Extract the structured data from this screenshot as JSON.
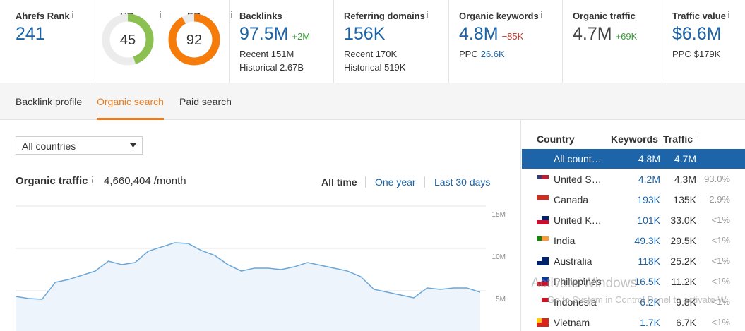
{
  "metrics": [
    {
      "label": "Ahrefs Rank",
      "value": "241"
    },
    {
      "label": "UR",
      "value": 45,
      "color": "#8cc152"
    },
    {
      "label": "DR",
      "value": 92,
      "color": "#f57c0a"
    },
    {
      "label": "Backlinks",
      "value": "97.5M",
      "delta": "+2M",
      "lines": [
        "Recent 151M",
        "Historical 2.67B"
      ]
    },
    {
      "label": "Referring domains",
      "value": "156K",
      "lines": [
        "Recent 170K",
        "Historical 519K"
      ]
    },
    {
      "label": "Organic keywords",
      "value": "4.8M",
      "delta": "−85K",
      "ppc_label": "PPC",
      "ppc": "26.6K"
    },
    {
      "label": "Organic traffic",
      "value": "4.7M",
      "delta": "+69K"
    },
    {
      "label": "Traffic value",
      "value": "$6.6M",
      "ppc_label": "PPC",
      "ppc": "$179K"
    }
  ],
  "tabs": [
    "Backlink profile",
    "Organic search",
    "Paid search"
  ],
  "active_tab": 1,
  "filter": "All countries",
  "traffic_panel": {
    "title": "Organic traffic",
    "total": "4,660,404",
    "unit": "/month",
    "ranges": [
      "All time",
      "One year",
      "Last 30 days"
    ],
    "active_range": 0
  },
  "chart_data": {
    "type": "line",
    "color": "#6aa6d8",
    "values": [
      4330000,
      4080000,
      4000000,
      6000000,
      6330000,
      6830000,
      7330000,
      8500000,
      8080000,
      8330000,
      9670000,
      10170000,
      10670000,
      10580000,
      9750000,
      9170000,
      8080000,
      7330000,
      7670000,
      7670000,
      7500000,
      7830000,
      8330000,
      8000000,
      7670000,
      7330000,
      6670000,
      5170000,
      4830000,
      4500000,
      4170000,
      5330000,
      5170000,
      5330000,
      5330000,
      4830000
    ],
    "ylim": [
      0,
      15000000
    ],
    "yticks": [
      {
        "value": 5000000,
        "label": "5M"
      },
      {
        "value": 10000000,
        "label": "10M"
      },
      {
        "value": 15000000,
        "label": "15M"
      }
    ],
    "grid": true
  },
  "countries": {
    "headers": [
      "Country",
      "Keywords",
      "Traffic"
    ],
    "rows": [
      [
        "All count…",
        "4.8M",
        "4.7M"
      ],
      [
        "United S…",
        "4.2M",
        "4.3M",
        "93.0%"
      ],
      [
        "Canada",
        "193K",
        "135K",
        "2.9%"
      ],
      [
        "United K…",
        "101K",
        "33.0K",
        "<1%"
      ],
      [
        "India",
        "49.3K",
        "29.5K",
        "<1%"
      ],
      [
        "Australia",
        "118K",
        "25.2K",
        "<1%"
      ],
      [
        "Philippines",
        "16.5K",
        "11.2K",
        "<1%"
      ],
      [
        "Indonesia",
        "6.2K",
        "9.8K",
        "<1%"
      ],
      [
        "Vietnam",
        "1.7K",
        "6.7K",
        "<1%"
      ]
    ]
  },
  "watermark": [
    "Activate Windows",
    "Go to System in Control Panel to activate W"
  ]
}
